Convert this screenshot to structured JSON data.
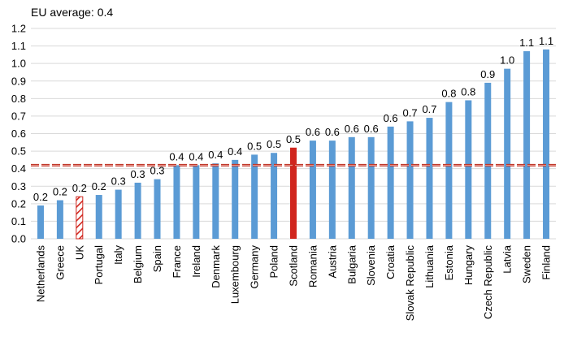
{
  "chart_data": {
    "type": "bar",
    "annotation": "EU average: 0.4",
    "reference_line": {
      "value": 0.42,
      "color": "#c0392b"
    },
    "ylim": [
      0,
      1.2
    ],
    "y_ticks": [
      "0.0",
      "0.1",
      "0.2",
      "0.3",
      "0.4",
      "0.5",
      "0.6",
      "0.7",
      "0.8",
      "0.9",
      "1.0",
      "1.1",
      "1.2"
    ],
    "grid": true,
    "colors": {
      "default": "#5b9bd5",
      "highlight": "#d0261e",
      "hatched": "#d0261e"
    },
    "categories": [
      "Netherlands",
      "Greece",
      "UK",
      "Portugal",
      "Italy",
      "Belgium",
      "Spain",
      "France",
      "Ireland",
      "Denmark",
      "Luxembourg",
      "Germany",
      "Poland",
      "Scotland",
      "Romania",
      "Austria",
      "Bulgaria",
      "Slovenia",
      "Croatia",
      "Slovak Republic",
      "Lithuania",
      "Estonia",
      "Hungary",
      "Czech Republic",
      "Latvia",
      "Sweden",
      "Finland"
    ],
    "values": [
      0.19,
      0.22,
      0.24,
      0.25,
      0.28,
      0.32,
      0.34,
      0.42,
      0.42,
      0.43,
      0.45,
      0.48,
      0.49,
      0.52,
      0.56,
      0.56,
      0.58,
      0.58,
      0.64,
      0.67,
      0.69,
      0.78,
      0.79,
      0.89,
      0.97,
      1.07,
      1.08
    ],
    "data_labels": [
      "0.2",
      "0.2",
      "0.2",
      "0.2",
      "0.3",
      "0.3",
      "0.3",
      "0.4",
      "0.4",
      "0.4",
      "0.4",
      "0.5",
      "0.5",
      "0.5",
      "0.6",
      "0.6",
      "0.6",
      "0.6",
      "0.6",
      "0.7",
      "0.7",
      "0.8",
      "0.8",
      "0.9",
      "1.0",
      "1.1",
      "1.1"
    ],
    "styles": [
      "default",
      "default",
      "hatched",
      "default",
      "default",
      "default",
      "default",
      "default",
      "default",
      "default",
      "default",
      "default",
      "default",
      "highlight",
      "default",
      "default",
      "default",
      "default",
      "default",
      "default",
      "default",
      "default",
      "default",
      "default",
      "default",
      "default",
      "default"
    ]
  }
}
